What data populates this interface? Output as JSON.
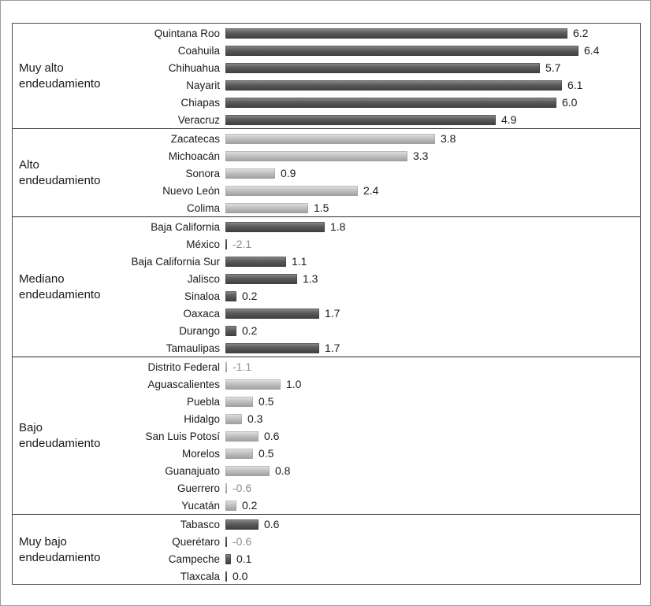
{
  "chart_data": {
    "type": "bar",
    "orientation": "horizontal",
    "title": "",
    "xlabel": "",
    "ylabel": "",
    "xlim": [
      -2.5,
      7
    ],
    "grid": false,
    "legend": "none",
    "value_decimals": 1,
    "groups": [
      {
        "label": "Muy alto endeudamiento",
        "shade": "dark",
        "items": [
          {
            "state": "Quintana Roo",
            "value": 6.2
          },
          {
            "state": "Coahuila",
            "value": 6.4
          },
          {
            "state": "Chihuahua",
            "value": 5.7
          },
          {
            "state": "Nayarit",
            "value": 6.1
          },
          {
            "state": "Chiapas",
            "value": 6.0
          },
          {
            "state": "Veracruz",
            "value": 4.9
          }
        ]
      },
      {
        "label": "Alto endeudamiento",
        "shade": "light",
        "items": [
          {
            "state": "Zacatecas",
            "value": 3.8
          },
          {
            "state": "Michoacán",
            "value": 3.3
          },
          {
            "state": "Sonora",
            "value": 0.9
          },
          {
            "state": "Nuevo León",
            "value": 2.4
          },
          {
            "state": "Colima",
            "value": 1.5
          }
        ]
      },
      {
        "label": "Mediano endeudamiento",
        "shade": "dark",
        "items": [
          {
            "state": "Baja California",
            "value": 1.8
          },
          {
            "state": "México",
            "value": -2.1
          },
          {
            "state": "Baja California Sur",
            "value": 1.1
          },
          {
            "state": "Jalisco",
            "value": 1.3
          },
          {
            "state": "Sinaloa",
            "value": 0.2
          },
          {
            "state": "Oaxaca",
            "value": 1.7
          },
          {
            "state": "Durango",
            "value": 0.2
          },
          {
            "state": "Tamaulipas",
            "value": 1.7
          }
        ]
      },
      {
        "label": "Bajo endeudamiento",
        "shade": "light",
        "items": [
          {
            "state": "Distrito Federal",
            "value": -1.1
          },
          {
            "state": "Aguascalientes",
            "value": 1.0
          },
          {
            "state": "Puebla",
            "value": 0.5
          },
          {
            "state": "Hidalgo",
            "value": 0.3
          },
          {
            "state": "San Luis Potosí",
            "value": 0.6
          },
          {
            "state": "Morelos",
            "value": 0.5
          },
          {
            "state": "Guanajuato",
            "value": 0.8
          },
          {
            "state": "Guerrero",
            "value": -0.6
          },
          {
            "state": "Yucatán",
            "value": 0.2
          }
        ]
      },
      {
        "label": "Muy bajo endeudamiento",
        "shade": "dark",
        "items": [
          {
            "state": "Tabasco",
            "value": 0.6
          },
          {
            "state": "Querétaro",
            "value": -0.6
          },
          {
            "state": "Campeche",
            "value": 0.1
          },
          {
            "state": "Tlaxcala",
            "value": 0.0
          }
        ]
      }
    ]
  },
  "colors": {
    "dark_bar": "#595959",
    "light_bar": "#bfbfbf",
    "text": "#1a1a1a",
    "negative_value_text": "#8c8c8c",
    "frame_border": "#4f4f4f",
    "outer_border": "#9b9b9b",
    "background": "#ffffff"
  }
}
